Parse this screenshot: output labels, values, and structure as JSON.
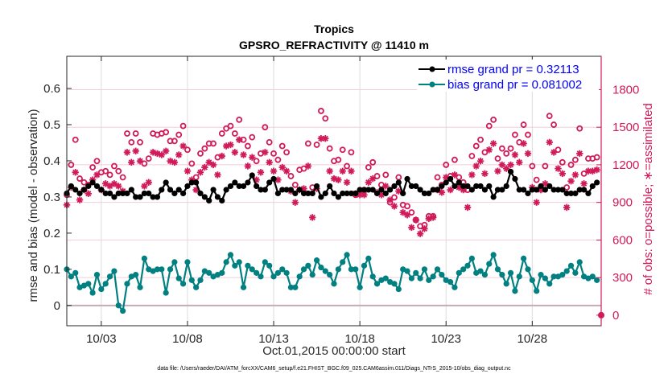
{
  "chart_data": {
    "type": "line",
    "title": "Tropics",
    "subtitle": "GPSRO_REFRACTIVITY @ 11410 m",
    "xlabel": "Oct.01,2015 00:00:00 start",
    "ylabel": "rmse and bias (model - observation)",
    "ylabel_right": "# of obs: o=possible; ∗=assimilated",
    "footnote": "data file: /Users/raeder/DAI/ATM_forcXX/CAM6_setup/f.e21.FHIST_BGC.f09_025.CAM6assim.011/Diags_NTrS_2015-10/obs_diag_output.nc",
    "x_units": "days since Oct.01,2015 00:00:00",
    "xlim": [
      0,
      31
    ],
    "ylim": [
      -0.056,
      0.689
    ],
    "ylim_right": [
      -84,
      2066
    ],
    "grid": true,
    "legend_position": "top-right",
    "x_ticks": [
      {
        "value": 2,
        "label": "10/03"
      },
      {
        "value": 7,
        "label": "10/08"
      },
      {
        "value": 12,
        "label": "10/13"
      },
      {
        "value": 17,
        "label": "10/18"
      },
      {
        "value": 22,
        "label": "10/23"
      },
      {
        "value": 27,
        "label": "10/28"
      }
    ],
    "y_ticks": [
      {
        "value": 0,
        "label": "0"
      },
      {
        "value": 0.1,
        "label": "0.1"
      },
      {
        "value": 0.2,
        "label": "0.2"
      },
      {
        "value": 0.3,
        "label": "0.3"
      },
      {
        "value": 0.4,
        "label": "0.4"
      },
      {
        "value": 0.5,
        "label": "0.5"
      },
      {
        "value": 0.6,
        "label": "0.6"
      }
    ],
    "y_ticks_right": [
      {
        "value": 0,
        "label": "0"
      },
      {
        "value": 300,
        "label": "300"
      },
      {
        "value": 600,
        "label": "600"
      },
      {
        "value": 900,
        "label": "900"
      },
      {
        "value": 1200,
        "label": "1200"
      },
      {
        "value": 1500,
        "label": "1500"
      },
      {
        "value": 1800,
        "label": "1800"
      }
    ],
    "x_start": 0.0,
    "x_step": 0.25,
    "series": [
      {
        "name": "rmse grand pr = 0.32113",
        "axis": "left",
        "color": "#000000",
        "marker": "filled-circle",
        "values": [
          0.31,
          0.33,
          0.32,
          0.31,
          0.32,
          0.33,
          0.34,
          0.33,
          0.32,
          0.31,
          0.31,
          0.3,
          0.31,
          0.31,
          0.31,
          0.32,
          0.3,
          0.3,
          0.31,
          0.31,
          0.3,
          0.3,
          0.32,
          0.34,
          0.32,
          0.31,
          0.32,
          0.31,
          0.33,
          0.34,
          0.34,
          0.31,
          0.3,
          0.29,
          0.32,
          0.3,
          0.29,
          0.32,
          0.33,
          0.34,
          0.33,
          0.33,
          0.34,
          0.36,
          0.33,
          0.32,
          0.32,
          0.34,
          0.35,
          0.31,
          0.32,
          0.32,
          0.32,
          0.31,
          0.32,
          0.31,
          0.31,
          0.31,
          0.33,
          0.3,
          0.31,
          0.33,
          0.31,
          0.3,
          0.31,
          0.31,
          0.31,
          0.31,
          0.32,
          0.32,
          0.32,
          0.32,
          0.31,
          0.32,
          0.31,
          0.32,
          0.33,
          0.34,
          0.31,
          0.35,
          0.33,
          0.33,
          0.32,
          0.31,
          0.31,
          0.32,
          0.32,
          0.33,
          0.34,
          0.35,
          0.33,
          0.34,
          0.33,
          0.33,
          0.32,
          0.33,
          0.33,
          0.32,
          0.33,
          0.3,
          0.32,
          0.32,
          0.33,
          0.37,
          0.35,
          0.32,
          0.32,
          0.31,
          0.32,
          0.32,
          0.33,
          0.32,
          0.33,
          0.32,
          0.32,
          0.32,
          0.31,
          0.31,
          0.31,
          0.32,
          0.32,
          0.31,
          0.33,
          0.34
        ],
        "source_note": "approximate, read from plot"
      },
      {
        "name": "bias grand pr = 0.081002",
        "axis": "left",
        "color": "#008080",
        "marker": "filled-circle",
        "values": [
          0.1,
          0.08,
          0.09,
          0.05,
          0.055,
          0.06,
          0.035,
          0.085,
          0.045,
          0.06,
          0.08,
          0.095,
          0.0,
          -0.015,
          0.06,
          0.08,
          0.085,
          0.05,
          0.13,
          0.1,
          0.095,
          0.1,
          0.1,
          0.035,
          0.1,
          0.12,
          0.075,
          0.06,
          0.12,
          0.07,
          0.05,
          0.07,
          0.095,
          0.09,
          0.08,
          0.085,
          0.09,
          0.12,
          0.14,
          0.11,
          0.12,
          0.05,
          0.11,
          0.1,
          0.09,
          0.08,
          0.12,
          0.11,
          0.08,
          0.09,
          0.1,
          0.09,
          0.05,
          0.05,
          0.08,
          0.1,
          0.11,
          0.085,
          0.125,
          0.105,
          0.095,
          0.085,
          0.06,
          0.1,
          0.12,
          0.14,
          0.1,
          0.1,
          0.05,
          0.11,
          0.13,
          0.08,
          0.06,
          0.07,
          0.075,
          0.065,
          0.06,
          0.045,
          0.1,
          0.095,
          0.075,
          0.09,
          0.075,
          0.1,
          0.07,
          0.08,
          0.1,
          0.085,
          0.07,
          0.065,
          0.05,
          0.09,
          0.1,
          0.11,
          0.13,
          0.09,
          0.095,
          0.085,
          0.115,
          0.14,
          0.1,
          0.085,
          0.06,
          0.09,
          0.04,
          0.08,
          0.13,
          0.1,
          0.07,
          0.04,
          0.085,
          0.075,
          0.06,
          0.08,
          0.08,
          0.085,
          0.095,
          0.11,
          0.09,
          0.12,
          0.08,
          0.075,
          0.08,
          0.07
        ],
        "source_note": "approximate, read from plot"
      },
      {
        "name": "obs possible",
        "axis": "right",
        "color": "#d11a5a",
        "marker": "open-circle",
        "values": [
          960,
          1200,
          1400,
          1090,
          1060,
          1040,
          1180,
          1230,
          1140,
          1150,
          1120,
          1190,
          1150,
          1100,
          1450,
          1380,
          1450,
          1380,
          1210,
          1250,
          1450,
          1440,
          1450,
          1460,
          1390,
          1390,
          1440,
          1510,
          1320,
          1210,
          1100,
          1290,
          1330,
          1370,
          1370,
          1260,
          1450,
          1490,
          1510,
          1450,
          1560,
          1400,
          1350,
          1420,
          1230,
          1290,
          1500,
          1380,
          1290,
          1240,
          1350,
          1300,
          1110,
          1040,
          1160,
          1170,
          1370,
          1020,
          1360,
          1630,
          1570,
          1330,
          1230,
          1240,
          1320,
          1190,
          1300,
          960,
          990,
          1000,
          1180,
          1220,
          1110,
          1040,
          1120,
          900,
          940,
          1100,
          880,
          870,
          820,
          760,
          710,
          720,
          790,
          790,
          1100,
          1040,
          1200,
          1110,
          1240,
          1100,
          1060,
          1000,
          1270,
          1350,
          1400,
          1300,
          1510,
          1560,
          1250,
          1330,
          1290,
          1330,
          1440,
          1380,
          1520,
          1440,
          1190,
          1080,
          1020,
          1190,
          1590,
          1520,
          1320,
          1220,
          1020,
          1200,
          1240,
          1490,
          1130,
          1250,
          1250,
          1260
        ],
        "source_note": "approximate, read from plot"
      },
      {
        "name": "obs assimilated",
        "axis": "right",
        "color": "#d11a5a",
        "marker": "asterisk",
        "values": [
          880,
          1020,
          1140,
          920,
          1000,
          970,
          1080,
          1120,
          1000,
          1050,
          1030,
          1050,
          1030,
          990,
          1300,
          1220,
          1310,
          1230,
          1030,
          1060,
          1300,
          1290,
          1280,
          1310,
          1230,
          1220,
          1280,
          1350,
          1150,
          1080,
          1000,
          1140,
          1180,
          1220,
          1200,
          1120,
          1270,
          1350,
          1360,
          1300,
          1400,
          1280,
          1190,
          1260,
          1080,
          1140,
          1300,
          1220,
          1150,
          1080,
          1180,
          1150,
          990,
          900,
          1000,
          1010,
          1190,
          780,
          1010,
          1410,
          1410,
          1150,
          1090,
          1080,
          1150,
          1060,
          1150,
          970,
          960,
          960,
          1060,
          1090,
          980,
          960,
          1030,
          920,
          870,
          990,
          820,
          800,
          700,
          760,
          650,
          690,
          770,
          780,
          1000,
          980,
          1100,
          1000,
          1120,
          1020,
          1000,
          860,
          1120,
          1190,
          1230,
          1130,
          1320,
          1370,
          1150,
          1200,
          1170,
          1200,
          1280,
          1220,
          1370,
          1290,
          1020,
          900,
          1000,
          1050,
          1380,
          1300,
          1170,
          1130,
          860,
          1070,
          1120,
          1290,
          1050,
          1150,
          1150,
          1160
        ],
        "source_note": "approximate, read from plot"
      }
    ],
    "legend": [
      {
        "label": "rmse grand pr = 0.32113",
        "color": "#000000"
      },
      {
        "label": "bias grand pr = 0.081002",
        "color": "#008080"
      }
    ],
    "zero_line_color": "#c8a9b8",
    "right_axis_color": "#d11a5a"
  }
}
